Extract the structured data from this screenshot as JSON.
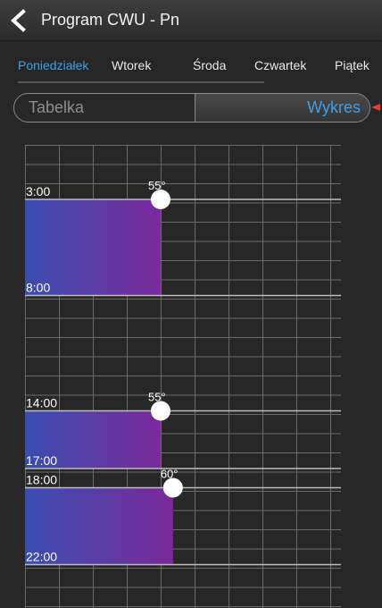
{
  "header": {
    "title": "Program CWU - Pn",
    "back_icon": "chevron-left-icon"
  },
  "tabs": [
    {
      "label": "Poniedziałek",
      "active": true
    },
    {
      "label": "Wtorek",
      "active": false
    },
    {
      "label": "Środa",
      "active": false
    },
    {
      "label": "Czwartek",
      "active": false
    },
    {
      "label": "Piątek",
      "active": false
    }
  ],
  "view_toggle": {
    "left_label": "Tabelka",
    "right_label": "Wykres",
    "selected": "Wykres"
  },
  "colors": {
    "accent": "#3fa1e4",
    "bar_start": "#3a4db0",
    "bar_end": "#7a2a9a",
    "grid": "#6b6b6b",
    "indicator": "#e53935"
  },
  "chart_data": {
    "type": "schedule",
    "x": {
      "min": 0,
      "max": 90,
      "unit": "°C"
    },
    "y": {
      "start_hour": 0,
      "end_hour": 24
    },
    "periods": [
      {
        "start": "3:00",
        "end": "8:00",
        "temp": 55,
        "temp_label": "55°"
      },
      {
        "start": "14:00",
        "end": "17:00",
        "temp": 55,
        "temp_label": "55°"
      },
      {
        "start": "18:00",
        "end": "22:00",
        "temp": 60,
        "temp_label": "60°"
      }
    ]
  }
}
